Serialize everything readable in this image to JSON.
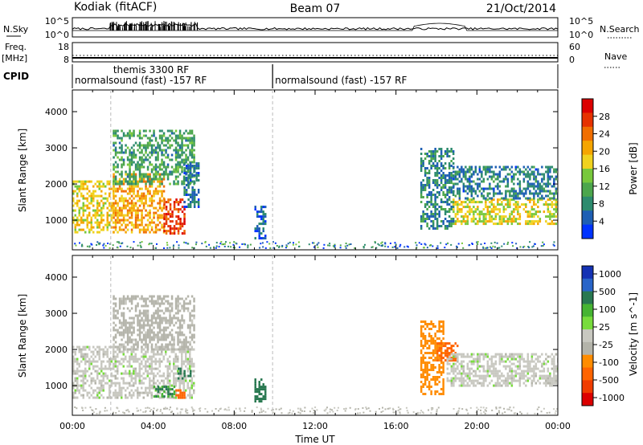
{
  "header": {
    "station": "Kodiak (fitACF)",
    "beam": "Beam 07",
    "date": "21/Oct/2014"
  },
  "strips": {
    "sky_label": "N.Sky",
    "search_label": "N.Search",
    "freq_label_top": "Freq.",
    "freq_label_unit": "[MHz]",
    "nave_label": "Nave",
    "cpid_label": "CPID",
    "sky_ticks": [
      "10^5",
      "10^0"
    ],
    "search_ticks": [
      "10^5",
      "10^0"
    ],
    "freq_ticks": [
      "18",
      "8"
    ],
    "nave_ticks": [
      "60",
      "0"
    ],
    "cpid_modes": [
      {
        "label": "themis 3300 RF",
        "start_hour": 1.9,
        "end_hour": 9.9
      },
      {
        "label": "normalsound (fast) -157 RF",
        "start_hour": 0.0,
        "end_hour": 9.9
      },
      {
        "label": "normalsound (fast) -157 RF",
        "start_hour": 9.9,
        "end_hour": 24.0
      }
    ]
  },
  "colors": {
    "power": [
      "#0033ff",
      "#1e5fb4",
      "#2d8b6e",
      "#4ca64c",
      "#78c83c",
      "#f0d21e",
      "#f5a500",
      "#f06e00",
      "#e63200",
      "#dc0000"
    ],
    "velocity": [
      "#1432b4",
      "#2864c8",
      "#287850",
      "#46b432",
      "#78dc3c",
      "#c8c8c0",
      "#b4b4aa",
      "#ff8c00",
      "#ff6400",
      "#f03c00",
      "#dc0000"
    ]
  },
  "chart_data": [
    {
      "type": "heatmap",
      "panel": "power",
      "xlabel": "Time UT",
      "ylabel": "Slant Range [km]",
      "xlim": [
        0,
        24
      ],
      "ylim": [
        180,
        4600
      ],
      "x_ticks": [
        "00:00",
        "04:00",
        "08:00",
        "12:00",
        "16:00",
        "20:00",
        "00:00"
      ],
      "y_ticks": [
        1000,
        2000,
        3000,
        4000
      ],
      "colorbar": {
        "label": "Power [dB]",
        "range": [
          0,
          32
        ],
        "ticks": [
          4,
          8,
          12,
          16,
          20,
          24,
          28
        ]
      },
      "echo_regions": [
        {
          "t_start": 0.0,
          "t_end": 2.0,
          "range_min": 700,
          "range_max": 2100,
          "power_db": 18
        },
        {
          "t_start": 2.0,
          "t_end": 4.5,
          "range_min": 650,
          "range_max": 2300,
          "power_db": 21
        },
        {
          "t_start": 4.5,
          "t_end": 5.5,
          "range_min": 650,
          "range_max": 1600,
          "power_db": 27
        },
        {
          "t_start": 2.0,
          "t_end": 6.0,
          "range_min": 2000,
          "range_max": 3500,
          "power_db": 10
        },
        {
          "t_start": 5.5,
          "t_end": 6.2,
          "range_min": 1400,
          "range_max": 2600,
          "power_db": 6
        },
        {
          "t_start": 9.0,
          "t_end": 9.5,
          "range_min": 500,
          "range_max": 1400,
          "power_db": 5
        },
        {
          "t_start": 17.2,
          "t_end": 18.8,
          "range_min": 800,
          "range_max": 3000,
          "power_db": 8
        },
        {
          "t_start": 18.8,
          "t_end": 24.0,
          "range_min": 900,
          "range_max": 1600,
          "power_db": 17
        },
        {
          "t_start": 18.8,
          "t_end": 24.0,
          "range_min": 1600,
          "range_max": 2500,
          "power_db": 7
        }
      ]
    },
    {
      "type": "heatmap",
      "panel": "velocity",
      "xlabel": "Time UT",
      "ylabel": "Slant Range [km]",
      "xlim": [
        0,
        24
      ],
      "ylim": [
        180,
        4600
      ],
      "x_ticks": [
        "00:00",
        "04:00",
        "08:00",
        "12:00",
        "16:00",
        "20:00",
        "00:00"
      ],
      "y_ticks": [
        1000,
        2000,
        3000,
        4000
      ],
      "colorbar": {
        "label": "Velocity [m s^-1]",
        "ticks": [
          "1000",
          "500",
          "100",
          "25",
          "-25",
          "-100",
          "-500",
          "-1000"
        ]
      },
      "echo_regions": [
        {
          "t_start": 0.0,
          "t_end": 6.0,
          "range_min": 700,
          "range_max": 2100,
          "velocity": 0
        },
        {
          "t_start": 2.0,
          "t_end": 6.0,
          "range_min": 2000,
          "range_max": 3500,
          "velocity": -50
        },
        {
          "t_start": 4.0,
          "t_end": 5.0,
          "range_min": 700,
          "range_max": 1000,
          "velocity": 250
        },
        {
          "t_start": 5.0,
          "t_end": 5.5,
          "range_min": 700,
          "range_max": 900,
          "velocity": -300
        },
        {
          "t_start": 5.2,
          "t_end": 5.8,
          "range_min": 1200,
          "range_max": 1500,
          "velocity": 400
        },
        {
          "t_start": 9.0,
          "t_end": 9.5,
          "range_min": 600,
          "range_max": 1200,
          "velocity": 300
        },
        {
          "t_start": 17.2,
          "t_end": 18.3,
          "range_min": 800,
          "range_max": 2800,
          "velocity": -200
        },
        {
          "t_start": 18.0,
          "t_end": 19.0,
          "range_min": 1700,
          "range_max": 2200,
          "velocity": -300
        },
        {
          "t_start": 18.5,
          "t_end": 24.0,
          "range_min": 1000,
          "range_max": 1900,
          "velocity": 0
        }
      ]
    }
  ]
}
